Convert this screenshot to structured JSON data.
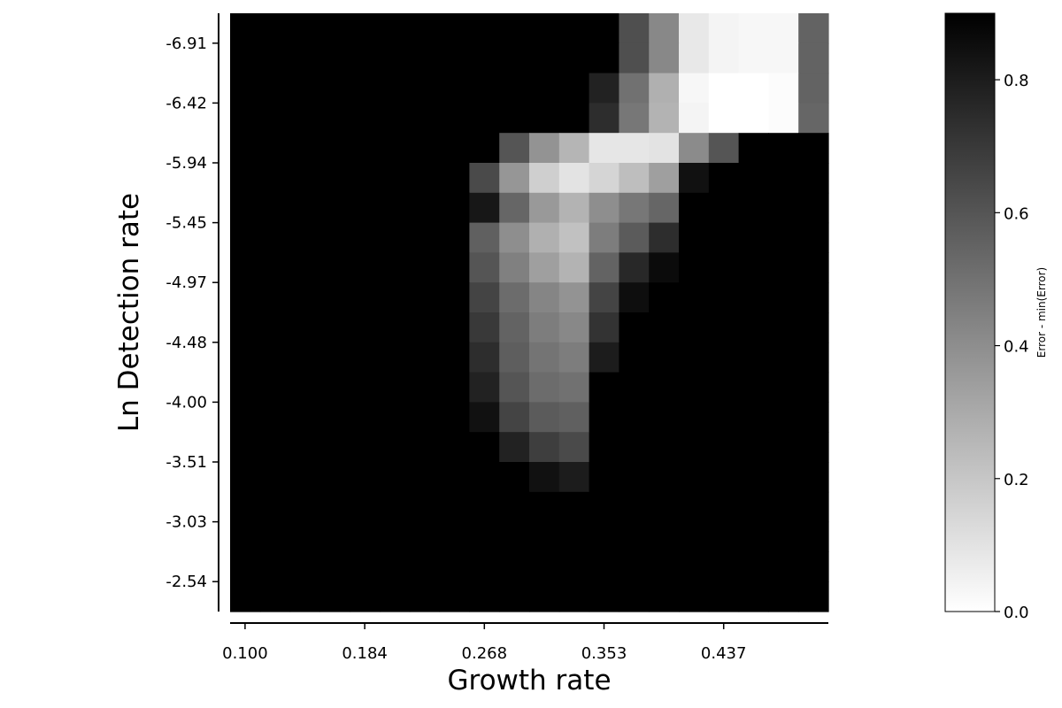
{
  "chart_data": {
    "type": "heatmap",
    "xlabel": "Growth rate",
    "ylabel": "Ln Detection rate",
    "x_ticks": [
      "0.100",
      "0.184",
      "0.268",
      "0.353",
      "0.437"
    ],
    "y_ticks": [
      "-6.91",
      "-6.42",
      "-5.94",
      "-5.45",
      "-4.97",
      "-4.48",
      "-4.00",
      "-3.51",
      "-3.03",
      "-2.54"
    ],
    "colorbar": {
      "label": "Error - min(Error)",
      "colormap": "gray_r",
      "vmin": 0.0,
      "vmax": 0.9,
      "ticks": [
        "0.0",
        "0.2",
        "0.4",
        "0.6",
        "0.8"
      ]
    },
    "grid_note": "values clipped at 0.9 (black); rows from top (-6.91) to bottom (-2.54)",
    "values": [
      [
        0.9,
        0.9,
        0.9,
        0.9,
        0.9,
        0.9,
        0.9,
        0.9,
        0.9,
        0.9,
        0.9,
        0.9,
        0.9,
        0.62,
        0.42,
        0.08,
        0.04,
        0.03,
        0.03,
        0.55
      ],
      [
        0.9,
        0.9,
        0.9,
        0.9,
        0.9,
        0.9,
        0.9,
        0.9,
        0.9,
        0.9,
        0.9,
        0.9,
        0.9,
        0.62,
        0.42,
        0.08,
        0.04,
        0.03,
        0.03,
        0.55
      ],
      [
        0.9,
        0.9,
        0.9,
        0.9,
        0.9,
        0.9,
        0.9,
        0.9,
        0.9,
        0.9,
        0.9,
        0.9,
        0.78,
        0.5,
        0.28,
        0.03,
        0.0,
        0.0,
        0.01,
        0.55
      ],
      [
        0.9,
        0.9,
        0.9,
        0.9,
        0.9,
        0.9,
        0.9,
        0.9,
        0.9,
        0.9,
        0.9,
        0.9,
        0.74,
        0.48,
        0.27,
        0.04,
        0.0,
        0.0,
        0.01,
        0.54
      ],
      [
        0.9,
        0.9,
        0.9,
        0.9,
        0.9,
        0.9,
        0.9,
        0.9,
        0.9,
        0.6,
        0.38,
        0.26,
        0.09,
        0.09,
        0.1,
        0.41,
        0.6,
        0.9,
        0.9,
        0.9
      ],
      [
        0.9,
        0.9,
        0.9,
        0.9,
        0.9,
        0.9,
        0.9,
        0.9,
        0.64,
        0.37,
        0.17,
        0.1,
        0.15,
        0.23,
        0.34,
        0.84,
        0.9,
        0.9,
        0.9,
        0.9
      ],
      [
        0.9,
        0.9,
        0.9,
        0.9,
        0.9,
        0.9,
        0.9,
        0.9,
        0.82,
        0.54,
        0.36,
        0.27,
        0.4,
        0.48,
        0.54,
        0.9,
        0.9,
        0.9,
        0.9,
        0.9
      ],
      [
        0.9,
        0.9,
        0.9,
        0.9,
        0.9,
        0.9,
        0.9,
        0.9,
        0.56,
        0.4,
        0.28,
        0.22,
        0.46,
        0.58,
        0.74,
        0.9,
        0.9,
        0.9,
        0.9,
        0.9
      ],
      [
        0.9,
        0.9,
        0.9,
        0.9,
        0.9,
        0.9,
        0.9,
        0.9,
        0.6,
        0.45,
        0.34,
        0.27,
        0.55,
        0.76,
        0.86,
        0.9,
        0.9,
        0.9,
        0.9,
        0.9
      ],
      [
        0.9,
        0.9,
        0.9,
        0.9,
        0.9,
        0.9,
        0.9,
        0.9,
        0.66,
        0.52,
        0.43,
        0.38,
        0.66,
        0.85,
        0.9,
        0.9,
        0.9,
        0.9,
        0.9,
        0.9
      ],
      [
        0.9,
        0.9,
        0.9,
        0.9,
        0.9,
        0.9,
        0.9,
        0.9,
        0.7,
        0.55,
        0.46,
        0.42,
        0.72,
        0.9,
        0.9,
        0.9,
        0.9,
        0.9,
        0.9,
        0.9
      ],
      [
        0.9,
        0.9,
        0.9,
        0.9,
        0.9,
        0.9,
        0.9,
        0.9,
        0.74,
        0.57,
        0.49,
        0.46,
        0.8,
        0.9,
        0.9,
        0.9,
        0.9,
        0.9,
        0.9,
        0.9
      ],
      [
        0.9,
        0.9,
        0.9,
        0.9,
        0.9,
        0.9,
        0.9,
        0.9,
        0.78,
        0.6,
        0.52,
        0.5,
        0.9,
        0.9,
        0.9,
        0.9,
        0.9,
        0.9,
        0.9,
        0.9
      ],
      [
        0.9,
        0.9,
        0.9,
        0.9,
        0.9,
        0.9,
        0.9,
        0.9,
        0.84,
        0.66,
        0.58,
        0.56,
        0.9,
        0.9,
        0.9,
        0.9,
        0.9,
        0.9,
        0.9,
        0.9
      ],
      [
        0.9,
        0.9,
        0.9,
        0.9,
        0.9,
        0.9,
        0.9,
        0.9,
        0.9,
        0.78,
        0.68,
        0.64,
        0.9,
        0.9,
        0.9,
        0.9,
        0.9,
        0.9,
        0.9,
        0.9
      ],
      [
        0.9,
        0.9,
        0.9,
        0.9,
        0.9,
        0.9,
        0.9,
        0.9,
        0.9,
        0.9,
        0.84,
        0.8,
        0.9,
        0.9,
        0.9,
        0.9,
        0.9,
        0.9,
        0.9,
        0.9
      ],
      [
        0.9,
        0.9,
        0.9,
        0.9,
        0.9,
        0.9,
        0.9,
        0.9,
        0.9,
        0.9,
        0.9,
        0.9,
        0.9,
        0.9,
        0.9,
        0.9,
        0.9,
        0.9,
        0.9,
        0.9
      ],
      [
        0.9,
        0.9,
        0.9,
        0.9,
        0.9,
        0.9,
        0.9,
        0.9,
        0.9,
        0.9,
        0.9,
        0.9,
        0.9,
        0.9,
        0.9,
        0.9,
        0.9,
        0.9,
        0.9,
        0.9
      ],
      [
        0.9,
        0.9,
        0.9,
        0.9,
        0.9,
        0.9,
        0.9,
        0.9,
        0.9,
        0.9,
        0.9,
        0.9,
        0.9,
        0.9,
        0.9,
        0.9,
        0.9,
        0.9,
        0.9,
        0.9
      ],
      [
        0.9,
        0.9,
        0.9,
        0.9,
        0.9,
        0.9,
        0.9,
        0.9,
        0.9,
        0.9,
        0.9,
        0.9,
        0.9,
        0.9,
        0.9,
        0.9,
        0.9,
        0.9,
        0.9,
        0.9
      ]
    ]
  }
}
